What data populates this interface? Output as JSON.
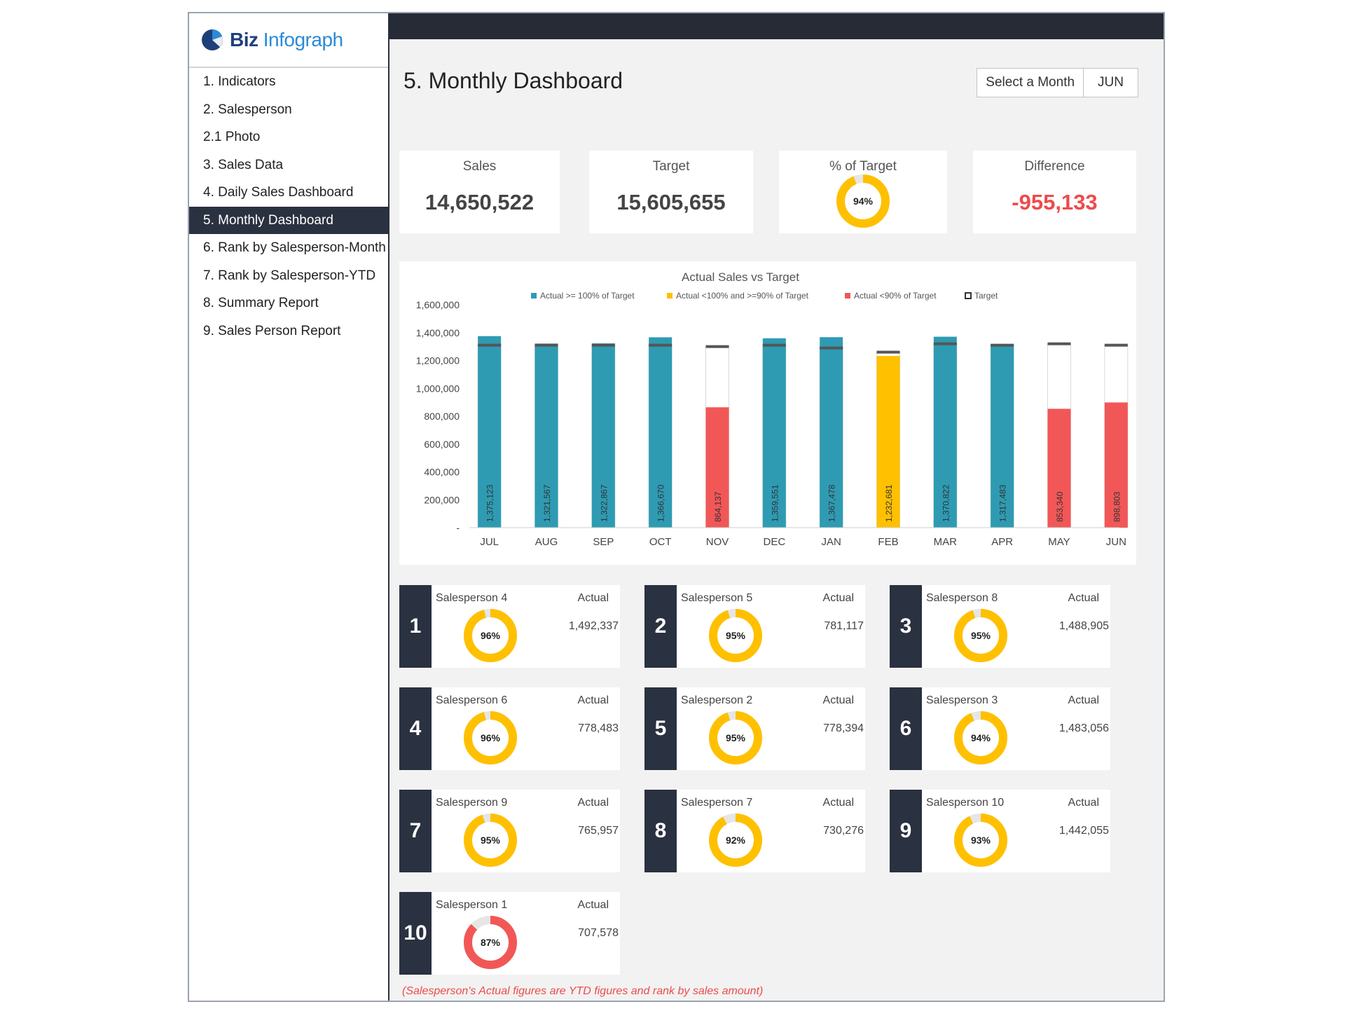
{
  "logo": {
    "brand": "Biz",
    "product": "Infograph"
  },
  "nav": [
    {
      "label": "1. Indicators"
    },
    {
      "label": "2. Salesperson"
    },
    {
      "label": "2.1 Photo"
    },
    {
      "label": "3. Sales Data"
    },
    {
      "label": "4. Daily Sales Dashboard"
    },
    {
      "label": "5. Monthly Dashboard",
      "active": true
    },
    {
      "label": "6. Rank by Salesperson-Month"
    },
    {
      "label": "7. Rank by Salesperson-YTD"
    },
    {
      "label": "8. Summary Report"
    },
    {
      "label": "9. Sales Person Report"
    }
  ],
  "header": {
    "title": "5. Monthly Dashboard",
    "select_label": "Select a Month",
    "selected_month": "JUN"
  },
  "kpis": {
    "sales": {
      "label": "Sales",
      "value": "14,650,522"
    },
    "target": {
      "label": "Target",
      "value": "15,605,655"
    },
    "pct": {
      "label": "% of Target",
      "value": "94%",
      "fraction": 0.94
    },
    "difference": {
      "label": "Difference",
      "value": "-955,133"
    }
  },
  "colors": {
    "teal": "#2e9bb3",
    "yellow": "#ffc000",
    "red": "#f25757",
    "navy": "#2a3140",
    "target_mark": "#555555"
  },
  "chart_data": {
    "type": "bar",
    "title": "Actual Sales vs Target",
    "legend": [
      "Actual >= 100% of Target",
      "Actual <100% and >=90% of Target",
      "Actual <90% of Target",
      "Target"
    ],
    "legend_position": "top",
    "categories": [
      "JUL",
      "AUG",
      "SEP",
      "OCT",
      "NOV",
      "DEC",
      "JAN",
      "FEB",
      "MAR",
      "APR",
      "MAY",
      "JUN"
    ],
    "actual": [
      1375123,
      1321567,
      1322867,
      1366670,
      864137,
      1359551,
      1367478,
      1232681,
      1370822,
      1317483,
      853340,
      898803
    ],
    "actual_labels": [
      "1,375,123",
      "1,321,567",
      "1,322,867",
      "1,366,670",
      "864,137",
      "1,359,551",
      "1,367,478",
      "1,232,681",
      "1,370,822",
      "1,317,483",
      "853,340",
      "898,803"
    ],
    "target": [
      1310000,
      1310000,
      1310000,
      1310000,
      1300000,
      1310000,
      1290000,
      1260000,
      1320000,
      1310000,
      1320000,
      1310000
    ],
    "status": [
      "ge100",
      "ge100",
      "ge100",
      "ge100",
      "lt90",
      "ge100",
      "ge100",
      "ge90",
      "ge100",
      "ge100",
      "lt90",
      "lt90"
    ],
    "ylim": [
      0,
      1600000
    ],
    "yticks": [
      0,
      200000,
      400000,
      600000,
      800000,
      1000000,
      1200000,
      1400000,
      1600000
    ],
    "ytick_labels": [
      "-",
      "200,000",
      "400,000",
      "600,000",
      "800,000",
      "1,000,000",
      "1,200,000",
      "1,400,000",
      "1,600,000"
    ],
    "grid": false
  },
  "actual_label": "Actual",
  "salespersons": [
    {
      "rank": "1",
      "name": "Salesperson 4",
      "pct_label": "96%",
      "pct": 0.96,
      "actual": "1,492,337"
    },
    {
      "rank": "2",
      "name": "Salesperson 5",
      "pct_label": "95%",
      "pct": 0.95,
      "actual": "781,117"
    },
    {
      "rank": "3",
      "name": "Salesperson 8",
      "pct_label": "95%",
      "pct": 0.95,
      "actual": "1,488,905"
    },
    {
      "rank": "4",
      "name": "Salesperson 6",
      "pct_label": "96%",
      "pct": 0.96,
      "actual": "778,483"
    },
    {
      "rank": "5",
      "name": "Salesperson 2",
      "pct_label": "95%",
      "pct": 0.95,
      "actual": "778,394"
    },
    {
      "rank": "6",
      "name": "Salesperson 3",
      "pct_label": "94%",
      "pct": 0.94,
      "actual": "1,483,056"
    },
    {
      "rank": "7",
      "name": "Salesperson 9",
      "pct_label": "95%",
      "pct": 0.95,
      "actual": "765,957"
    },
    {
      "rank": "8",
      "name": "Salesperson 7",
      "pct_label": "92%",
      "pct": 0.92,
      "actual": "730,276"
    },
    {
      "rank": "9",
      "name": "Salesperson 10",
      "pct_label": "93%",
      "pct": 0.93,
      "actual": "1,442,055"
    },
    {
      "rank": "10",
      "name": "Salesperson 1",
      "pct_label": "87%",
      "pct": 0.87,
      "actual": "707,578"
    }
  ],
  "footnote": "(Salesperson's Actual figures are YTD figures and rank by sales amount)"
}
